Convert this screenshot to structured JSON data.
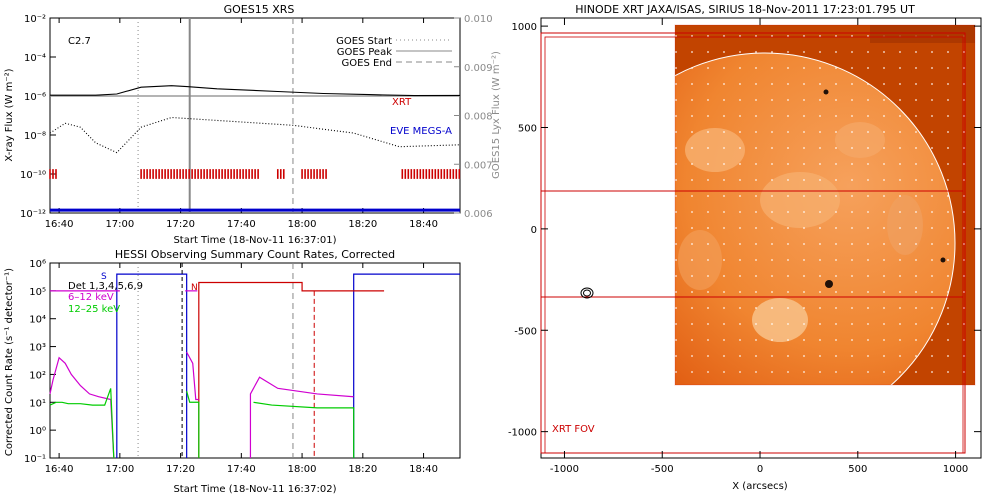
{
  "chart_data": [
    {
      "type": "line",
      "title": "GOES15 XRS",
      "xlabel": "Start Time (18-Nov-11 16:37:01)",
      "ylabel": "X-ray Flux (W m⁻²)",
      "y2label": "GOES15 Lyx Flux (W m⁻²)",
      "x_ticks": [
        "16:40",
        "17:00",
        "17:20",
        "17:40",
        "18:00",
        "18:20",
        "18:40"
      ],
      "y_ticks": [
        "10⁻²",
        "10⁻⁴",
        "10⁻⁶",
        "10⁻⁸",
        "10⁻¹⁰",
        "10⁻¹²"
      ],
      "y2_ticks": [
        "0.010",
        "0.009",
        "0.008",
        "0.007",
        "0.006"
      ],
      "ylim_log": [
        -12,
        -2
      ],
      "y2lim": [
        0.006,
        0.01
      ],
      "annotation": "C2.7",
      "legend": [
        "GOES Start",
        "GOES Peak",
        "GOES End"
      ],
      "labels": {
        "xrt": "XRT",
        "eve": "EVE MEGS-A"
      },
      "series": [
        {
          "name": "GOES long",
          "color": "#000000",
          "t": [
            0,
            15,
            22,
            30,
            40,
            45,
            55,
            75,
            90,
            105,
            120,
            135
          ],
          "log_flux": [
            -5.96,
            -5.96,
            -5.9,
            -5.55,
            -5.47,
            -5.52,
            -5.63,
            -5.77,
            -5.87,
            -5.93,
            -5.98,
            -5.97
          ]
        },
        {
          "name": "GOES short",
          "color": "#000000",
          "t": [
            0,
            5,
            10,
            15,
            22,
            30,
            40,
            60,
            80,
            100,
            115,
            135
          ],
          "log_flux": [
            -7.9,
            -7.4,
            -7.6,
            -8.4,
            -8.9,
            -7.6,
            -7.1,
            -7.3,
            -7.5,
            -7.9,
            -8.6,
            -8.5
          ]
        }
      ],
      "events_min": {
        "start": 29,
        "peak": 46,
        "end": 80
      },
      "xrt_intervals_min": [
        [
          0,
          2
        ],
        [
          30,
          69
        ],
        [
          75,
          77
        ],
        [
          83,
          91
        ],
        [
          116,
          135
        ]
      ],
      "eve_log_flux": -11.85
    },
    {
      "type": "line",
      "title": "HESSI Observing Summary Count Rates, Corrected",
      "xlabel": "Start Time (18-Nov-11 16:37:02)",
      "ylabel": "Corrected Count Rate (s⁻¹ detector⁻¹)",
      "x_ticks": [
        "16:40",
        "17:00",
        "17:20",
        "17:40",
        "18:00",
        "18:20",
        "18:40"
      ],
      "y_ticks": [
        "10⁶",
        "10⁵",
        "10⁴",
        "10³",
        "10²",
        "10¹",
        "10⁰",
        "10⁻¹"
      ],
      "ylim_log": [
        -1,
        6
      ],
      "legend": [
        "Det 1,3,4,5,6,9",
        "6–12 keV",
        "12–25 keV"
      ],
      "legend_colors": [
        "#000000",
        "#d000d0",
        "#00cc00"
      ],
      "flags": [
        "S",
        "N"
      ],
      "series": [
        {
          "name": "6-12 keV",
          "color": "#d000d0",
          "t": [
            0,
            1,
            3,
            5,
            7,
            10,
            13,
            16,
            20,
            21
          ],
          "log_rate": [
            1.3,
            1.8,
            2.6,
            2.4,
            2.0,
            1.6,
            1.3,
            1.2,
            1.1,
            -1
          ]
        },
        {
          "name": "12-25 keV",
          "color": "#00cc00",
          "t": [
            0,
            2,
            4,
            6,
            10,
            14,
            18,
            20,
            21
          ],
          "log_rate": [
            0.9,
            1.0,
            1.0,
            0.95,
            0.95,
            0.9,
            0.9,
            1.5,
            -1
          ]
        }
      ]
    },
    {
      "type": "image",
      "title": "HINODE XRT JAXA/ISAS, SIRIUS 18-Nov-2011 17:23:01.795 UT",
      "xlabel": "X (arcsecs)",
      "ylabel": "",
      "x_ticks": [
        "-1000",
        "-500",
        "0",
        "500",
        "1000"
      ],
      "y_ticks": [
        "1000",
        "500",
        "0",
        "-500",
        "-1000"
      ],
      "xlim": [
        -1120,
        1130
      ],
      "ylim": [
        -1130,
        1040
      ],
      "fov_label": "XRT FOV"
    }
  ]
}
